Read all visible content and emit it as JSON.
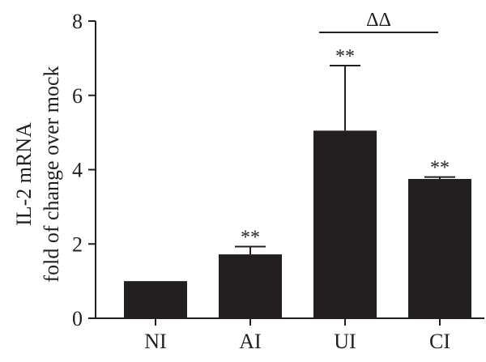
{
  "chart_data": {
    "type": "bar",
    "categories": [
      "NI",
      "AI",
      "UI",
      "CI"
    ],
    "values": [
      1.0,
      1.72,
      5.05,
      3.75
    ],
    "error_upper": [
      1.0,
      1.93,
      6.8,
      3.8
    ],
    "significance": [
      "",
      "**",
      "**",
      "**"
    ],
    "comparison": {
      "from": "UI",
      "to": "CI",
      "label": "ΔΔ"
    },
    "ylabel_line1": "IL-2 mRNA",
    "ylabel_line2": "fold of change over mock",
    "ylim": [
      0,
      8
    ],
    "yticks": [
      0,
      2,
      4,
      6,
      8
    ],
    "grid": false,
    "colors": {
      "bar": "#231f20",
      "axis": "#231f20"
    }
  }
}
